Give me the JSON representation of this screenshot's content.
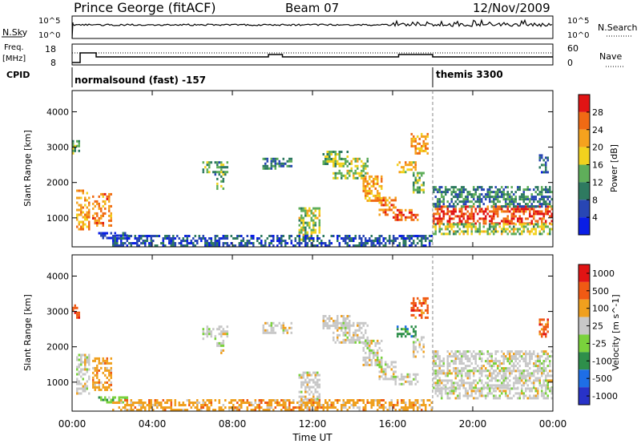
{
  "header": {
    "station": "Prince George (fitACF)",
    "beam": "Beam 07",
    "date": "12/Nov/2009"
  },
  "sky_panel": {
    "left_label": "N.Sky",
    "right_label": "N.Search",
    "y_ticks": [
      "10^5",
      "10^0"
    ],
    "right_ticks": [
      "10^5",
      "10^0"
    ]
  },
  "freq_panel": {
    "left_label_1": "Freq.",
    "left_label_2": "[MHz]",
    "right_label": "Nave",
    "y_ticks": [
      "18",
      "8"
    ],
    "right_ticks": [
      "60",
      "0"
    ]
  },
  "cpid_panel": {
    "label": "CPID",
    "segments": [
      {
        "text": "normalsound (fast) -157",
        "start": "00:00"
      },
      {
        "text": "themis 3300",
        "start": "18:00"
      }
    ]
  },
  "chart_data": [
    {
      "type": "heatmap",
      "quantity": "Power",
      "unit_label": "Power [dB]",
      "ylabel": "Slant Range [km]",
      "xlabel": "Time UT",
      "ylim": [
        180,
        4600
      ],
      "y_ticks": [
        "4000",
        "3000",
        "2000",
        "1000"
      ],
      "colorbar_ticks": [
        "28",
        "24",
        "20",
        "16",
        "12",
        "8",
        "4"
      ],
      "colorbar_colors": [
        "#0a1ee6",
        "#2846b4",
        "#2e7a60",
        "#5fae5a",
        "#f2d21e",
        "#f5a21e",
        "#f06a14",
        "#e11414"
      ],
      "colorbar_range": [
        0,
        32
      ],
      "regions": [
        {
          "t0": 0.2,
          "t1": 0.9,
          "r0": 700,
          "r1": 1800,
          "v": 22
        },
        {
          "t0": 0.0,
          "t1": 0.4,
          "r0": 2800,
          "r1": 3200,
          "v": 14
        },
        {
          "t0": 1.0,
          "t1": 2.0,
          "r0": 800,
          "r1": 1700,
          "v": 24
        },
        {
          "t0": 1.3,
          "t1": 2.8,
          "r0": 450,
          "r1": 600,
          "v": 6
        },
        {
          "t0": 6.5,
          "t1": 7.8,
          "r0": 2200,
          "r1": 2600,
          "v": 12
        },
        {
          "t0": 7.2,
          "t1": 7.6,
          "r0": 1800,
          "r1": 2200,
          "v": 14
        },
        {
          "t0": 9.5,
          "t1": 11.0,
          "r0": 2400,
          "r1": 2700,
          "v": 10
        },
        {
          "t0": 11.3,
          "t1": 12.4,
          "r0": 400,
          "r1": 1300,
          "v": 16
        },
        {
          "t0": 12.5,
          "t1": 13.8,
          "r0": 2500,
          "r1": 2900,
          "v": 14
        },
        {
          "t0": 13.0,
          "t1": 14.8,
          "r0": 2100,
          "r1": 2700,
          "v": 16
        },
        {
          "t0": 14.5,
          "t1": 15.5,
          "r0": 1500,
          "r1": 2200,
          "v": 22
        },
        {
          "t0": 15.3,
          "t1": 16.2,
          "r0": 1100,
          "r1": 1600,
          "v": 24
        },
        {
          "t0": 16.0,
          "t1": 17.3,
          "r0": 950,
          "r1": 1250,
          "v": 28
        },
        {
          "t0": 16.2,
          "t1": 17.2,
          "r0": 2300,
          "r1": 2600,
          "v": 20
        },
        {
          "t0": 16.9,
          "t1": 17.8,
          "r0": 2800,
          "r1": 3400,
          "v": 22
        },
        {
          "t0": 17.0,
          "t1": 17.6,
          "r0": 1700,
          "r1": 2300,
          "v": 14
        },
        {
          "t0": 18.0,
          "t1": 24.0,
          "r0": 850,
          "r1": 1350,
          "v": 28
        },
        {
          "t0": 18.0,
          "t1": 24.0,
          "r0": 550,
          "r1": 850,
          "v": 16
        },
        {
          "t0": 18.0,
          "t1": 24.0,
          "r0": 1350,
          "r1": 1900,
          "v": 10
        },
        {
          "t0": 2.0,
          "t1": 18.0,
          "r0": 200,
          "r1": 520,
          "v": 7
        },
        {
          "t0": 23.3,
          "t1": 23.8,
          "r0": 2300,
          "r1": 2800,
          "v": 8
        }
      ]
    },
    {
      "type": "heatmap",
      "quantity": "Velocity",
      "unit_label": "Velocity [m s^-1]",
      "ylabel": "Slant Range [km]",
      "xlabel": "Time UT",
      "ylim": [
        180,
        4600
      ],
      "y_ticks": [
        "4000",
        "3000",
        "2000",
        "1000"
      ],
      "colorbar_ticks": [
        "1000",
        "500",
        "100",
        "25",
        "-25",
        "-100",
        "-500",
        "-1000"
      ],
      "colorbar_colors": [
        "#2832c8",
        "#1e6ee6",
        "#2e8f4a",
        "#7ad23c",
        "#c8c8c8",
        "#f0a01e",
        "#f05a14",
        "#e11414"
      ],
      "regions": [
        {
          "t0": 0.2,
          "t1": 0.9,
          "r0": 700,
          "r1": 1800,
          "c": 4
        },
        {
          "t0": 0.0,
          "t1": 0.4,
          "r0": 2800,
          "r1": 3200,
          "c": 6
        },
        {
          "t0": 1.0,
          "t1": 2.0,
          "r0": 800,
          "r1": 1700,
          "c": 5
        },
        {
          "t0": 1.3,
          "t1": 2.8,
          "r0": 450,
          "r1": 600,
          "c": 3
        },
        {
          "t0": 6.5,
          "t1": 7.8,
          "r0": 2200,
          "r1": 2600,
          "c": 4
        },
        {
          "t0": 7.2,
          "t1": 7.6,
          "r0": 1800,
          "r1": 2200,
          "c": 4
        },
        {
          "t0": 9.5,
          "t1": 11.0,
          "r0": 2400,
          "r1": 2700,
          "c": 4
        },
        {
          "t0": 11.3,
          "t1": 12.4,
          "r0": 400,
          "r1": 1300,
          "c": 4
        },
        {
          "t0": 11.5,
          "t1": 12.3,
          "r0": 250,
          "r1": 450,
          "c": 5
        },
        {
          "t0": 12.5,
          "t1": 13.8,
          "r0": 2500,
          "r1": 2900,
          "c": 4
        },
        {
          "t0": 13.0,
          "t1": 14.8,
          "r0": 2100,
          "r1": 2700,
          "c": 4
        },
        {
          "t0": 14.5,
          "t1": 15.5,
          "r0": 1500,
          "r1": 2200,
          "c": 4
        },
        {
          "t0": 15.3,
          "t1": 16.2,
          "r0": 1100,
          "r1": 1600,
          "c": 4
        },
        {
          "t0": 16.0,
          "t1": 17.3,
          "r0": 950,
          "r1": 1250,
          "c": 4
        },
        {
          "t0": 16.2,
          "t1": 17.2,
          "r0": 2300,
          "r1": 2600,
          "c": 2
        },
        {
          "t0": 16.9,
          "t1": 17.8,
          "r0": 2800,
          "r1": 3400,
          "c": 6
        },
        {
          "t0": 17.0,
          "t1": 17.6,
          "r0": 1700,
          "r1": 2300,
          "c": 4
        },
        {
          "t0": 18.0,
          "t1": 24.0,
          "r0": 850,
          "r1": 1350,
          "c": 4
        },
        {
          "t0": 18.0,
          "t1": 24.0,
          "r0": 550,
          "r1": 850,
          "c": 4
        },
        {
          "t0": 18.0,
          "t1": 24.0,
          "r0": 1350,
          "r1": 1900,
          "c": 4
        },
        {
          "t0": 2.0,
          "t1": 18.0,
          "r0": 200,
          "r1": 520,
          "c": 5
        },
        {
          "t0": 23.3,
          "t1": 23.8,
          "r0": 2300,
          "r1": 2800,
          "c": 6
        }
      ]
    }
  ],
  "time_axis": {
    "label": "Time UT",
    "ticks": [
      "00:00",
      "04:00",
      "08:00",
      "12:00",
      "16:00",
      "20:00",
      "00:00"
    ],
    "range_hours": [
      0,
      24
    ]
  }
}
